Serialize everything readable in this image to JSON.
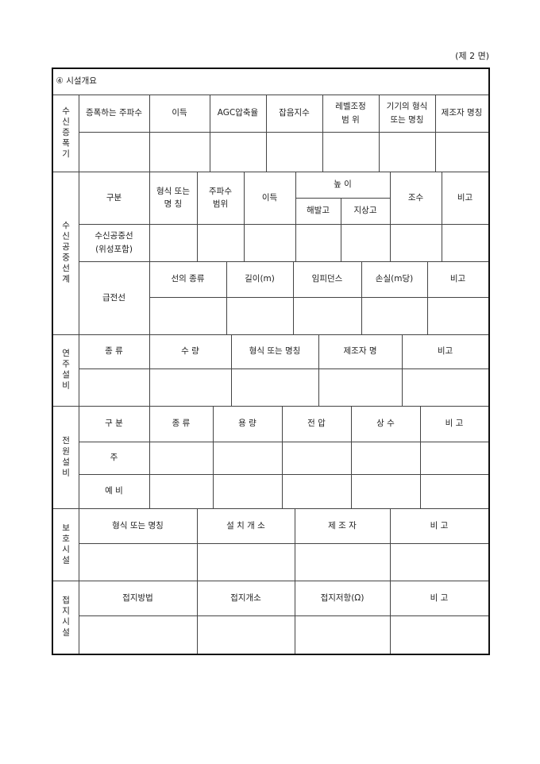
{
  "page_label": "(제 2 면)",
  "section_title": "④ 시설개요",
  "receiver_amplifier": {
    "label": "수신증폭기",
    "headers": [
      "증폭하는 주파수",
      "이득",
      "AGC압축율",
      "잡음지수",
      "레벨조정\n범    위",
      "기기의 형식\n또는 명칭",
      "제조자 명칭"
    ]
  },
  "antenna": {
    "label": "수신공중선계",
    "headers": {
      "category": "구분",
      "type": "형식 또는\n명 칭",
      "freq_range": "주파수\n범위",
      "gain": "이득",
      "height": "높  이",
      "altitude": "해발고",
      "ground_height": "지상고",
      "elements": "조수",
      "remarks": "비고"
    },
    "row_label": "수신공중선\n(위성포함)",
    "feeder": {
      "label": "급전선",
      "headers": [
        "선의 종류",
        "길이(m)",
        "임피던스",
        "손실(m당)",
        "비고"
      ]
    }
  },
  "studio": {
    "label": "연주설비",
    "headers": [
      "종 류",
      "수 량",
      "형식 또는 명칭",
      "제조자 명",
      "비고"
    ]
  },
  "power": {
    "label": "전원설비",
    "headers": [
      "구 분",
      "종 류",
      "용 량",
      "전 압",
      "상 수",
      "비 고"
    ],
    "rows": [
      "주",
      "예 비"
    ]
  },
  "protection": {
    "label": "보호시설",
    "headers": [
      "형식 또는 명칭",
      "설 치 개 소",
      "제 조 자",
      "비 고"
    ]
  },
  "grounding": {
    "label": "접지시설",
    "headers": [
      "접지방법",
      "접지개소",
      "접지저항(Ω)",
      "비 고"
    ]
  }
}
